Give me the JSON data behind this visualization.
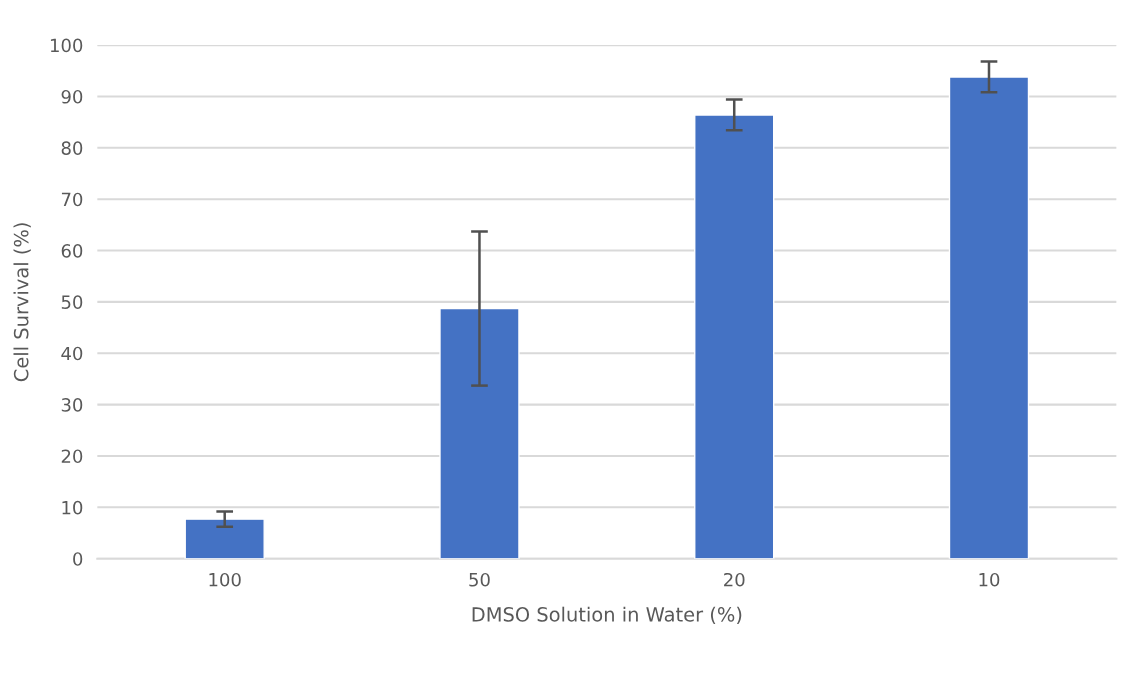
{
  "chart_data": {
    "type": "bar",
    "xlabel": "DMSO Solution in Water (%)",
    "ylabel": "Cell Survival (%)",
    "categories": [
      "100",
      "50",
      "20",
      "10"
    ],
    "values": [
      7.7,
      48.7,
      86.4,
      93.8
    ],
    "errors": [
      1.5,
      15,
      3,
      3
    ],
    "color": "#4472c4",
    "ylim": [
      0,
      100
    ],
    "yticks": [
      0,
      10,
      20,
      30,
      40,
      50,
      60,
      70,
      80,
      90,
      100
    ],
    "grid": "y"
  }
}
